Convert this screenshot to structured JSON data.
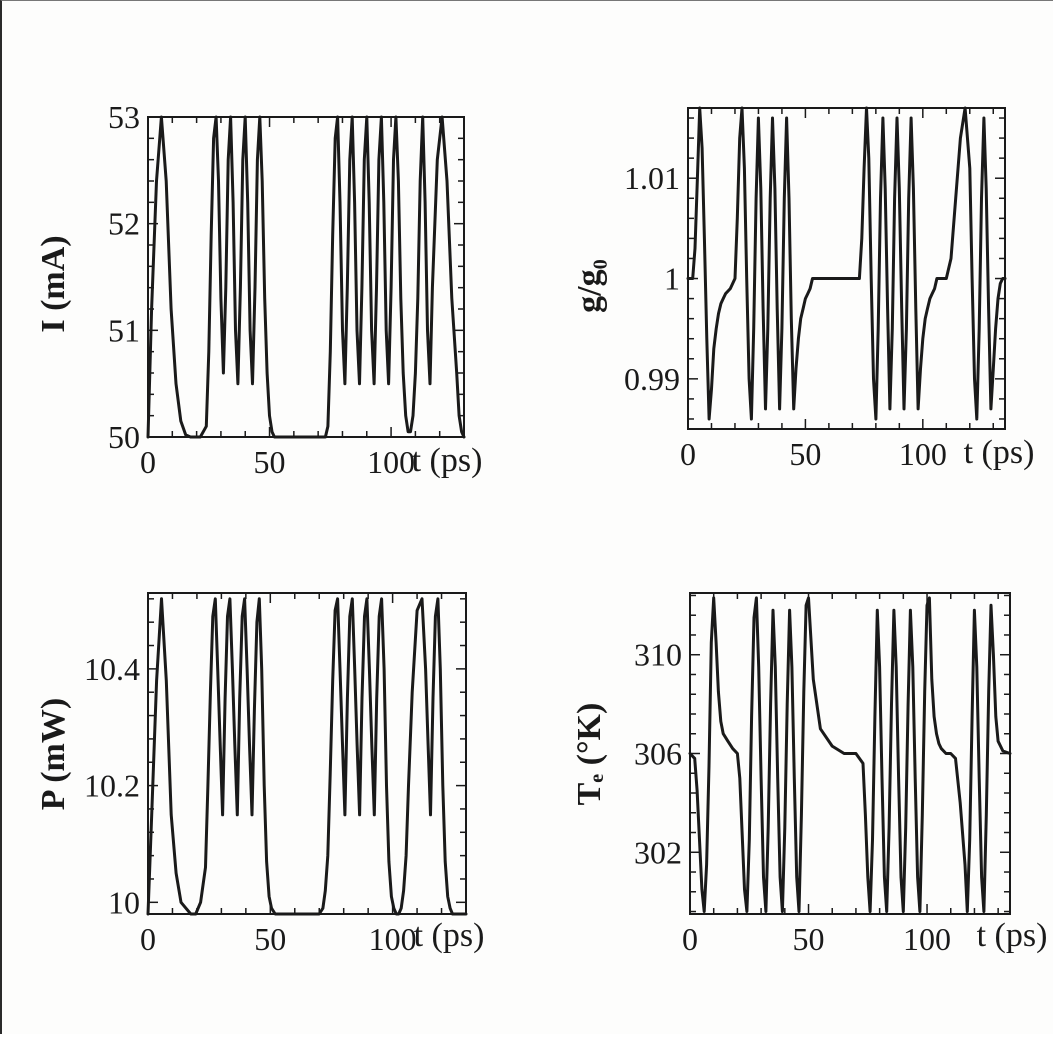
{
  "colors": {
    "ink": "#1a1a1a",
    "paper": "#fdfdfc"
  },
  "chart_data": [
    {
      "id": "current",
      "type": "line",
      "ylabel": "I  (mA)",
      "xlabel": "t  (ps)",
      "xlim": [
        0,
        130
      ],
      "ylim": [
        50,
        53
      ],
      "xticks": [
        0,
        50,
        100
      ],
      "xtick_labels": [
        "0",
        "50",
        "100"
      ],
      "yticks": [
        50,
        51,
        52,
        53
      ],
      "ytick_labels": [
        "50",
        "51",
        "52",
        "53"
      ],
      "grid": false,
      "series": [
        {
          "x": [
            0,
            1.5,
            3.5,
            5.5,
            7.5,
            9.5,
            11.5,
            13.5,
            15.5,
            17.5,
            19.5,
            21.5,
            24,
            25,
            26,
            27,
            28,
            29,
            30,
            31,
            32,
            33,
            34,
            35,
            36,
            37,
            38,
            39,
            40,
            41,
            42,
            43,
            44,
            45,
            46,
            47,
            48,
            49,
            50,
            51,
            52,
            53,
            54.5,
            56.5,
            58.5,
            60.5,
            63,
            73,
            74,
            75,
            76,
            77,
            78,
            79,
            80,
            81,
            82,
            83,
            84,
            85,
            86,
            87,
            88,
            89,
            90,
            91,
            92,
            93,
            94,
            95,
            96,
            97,
            98,
            99,
            100,
            101,
            102,
            103,
            104,
            105,
            106,
            107,
            108,
            109,
            110,
            111,
            112,
            113,
            114,
            115,
            116,
            117,
            119,
            121,
            123,
            125,
            127,
            128,
            129,
            130
          ],
          "y": [
            50,
            51.2,
            52.4,
            53,
            52.4,
            51.2,
            50.5,
            50.15,
            50.02,
            50,
            50,
            50,
            50.1,
            50.8,
            51.9,
            52.8,
            53,
            52.4,
            51.3,
            50.6,
            51.4,
            52.6,
            53,
            52.2,
            51.0,
            50.5,
            51.4,
            52.6,
            53,
            52.2,
            51.0,
            50.5,
            51.4,
            52.6,
            53,
            52.4,
            51.3,
            50.6,
            50.2,
            50.05,
            50,
            50,
            50,
            50,
            50,
            50,
            50,
            50,
            50.1,
            50.8,
            51.9,
            52.8,
            53,
            52.2,
            51.0,
            50.5,
            51.4,
            52.6,
            53,
            52.2,
            51.0,
            50.5,
            51.4,
            52.6,
            53,
            52.2,
            51.0,
            50.5,
            51.4,
            52.6,
            53,
            52.2,
            51.0,
            50.5,
            51.4,
            52.6,
            53,
            52.4,
            51.3,
            50.6,
            50.2,
            50.05,
            50.05,
            50.2,
            50.6,
            51.3,
            52.4,
            53,
            52.2,
            51.0,
            50.5,
            51.4,
            52.6,
            53,
            52.4,
            51.3,
            50.6,
            50.2,
            50.05,
            50
          ]
        }
      ]
    },
    {
      "id": "gain",
      "type": "line",
      "ylabel": "g/g₀",
      "xlabel": "t  (ps)",
      "xlim": [
        0,
        135
      ],
      "ylim": [
        0.985,
        1.017
      ],
      "xticks": [
        0,
        50,
        100
      ],
      "xtick_labels": [
        "0",
        "50",
        "100"
      ],
      "yticks": [
        0.99,
        1.0,
        1.01
      ],
      "ytick_labels": [
        "0.99",
        "1",
        "1.01"
      ],
      "grid": false,
      "series": [
        {
          "x": [
            0,
            2,
            3,
            4,
            5,
            6,
            7,
            8,
            9,
            10,
            11,
            12,
            13,
            14,
            15,
            16,
            18,
            20,
            21,
            22,
            23,
            24,
            25,
            26,
            27,
            28,
            29,
            30,
            31,
            32,
            33,
            34,
            35,
            36,
            37,
            38,
            39,
            40,
            41,
            42,
            43,
            44,
            45,
            46,
            47,
            48,
            49,
            50,
            51,
            52,
            53,
            55,
            58,
            62,
            66,
            70,
            73,
            74,
            75,
            76,
            77,
            78,
            79,
            80,
            81,
            82,
            83,
            84,
            85,
            86,
            87,
            88,
            89,
            90,
            91,
            92,
            93,
            94,
            95,
            96,
            97,
            98,
            99,
            100,
            101,
            102,
            103,
            104,
            105,
            106,
            107,
            108,
            110,
            112,
            114,
            116,
            118,
            120,
            121,
            122,
            123,
            124,
            125,
            126,
            127,
            128,
            129,
            130,
            131,
            132,
            133,
            134,
            135
          ],
          "y": [
            1.0,
            1.0,
            1.003,
            1.01,
            1.017,
            1.013,
            1.004,
            0.994,
            0.986,
            0.989,
            0.993,
            0.995,
            0.9965,
            0.9975,
            0.998,
            0.9985,
            0.999,
            1.0,
            1.006,
            1.014,
            1.017,
            1.011,
            1.0,
            0.99,
            0.986,
            0.995,
            1.008,
            1.016,
            1.009,
            0.997,
            0.987,
            0.995,
            1.008,
            1.016,
            1.009,
            0.997,
            0.987,
            0.995,
            1.008,
            1.016,
            1.008,
            0.996,
            0.987,
            0.991,
            0.994,
            0.996,
            0.997,
            0.998,
            0.9985,
            0.999,
            1.0,
            1.0,
            1.0,
            1.0,
            1.0,
            1.0,
            1.0,
            1.004,
            1.011,
            1.017,
            1.012,
            1.0,
            0.99,
            0.986,
            0.995,
            1.008,
            1.016,
            1.009,
            0.997,
            0.987,
            0.995,
            1.008,
            1.016,
            1.009,
            0.997,
            0.987,
            0.995,
            1.008,
            1.016,
            1.009,
            0.997,
            0.987,
            0.991,
            0.994,
            0.996,
            0.997,
            0.998,
            0.9985,
            0.999,
            1.0,
            1.0,
            1.0,
            1.0,
            1.002,
            1.008,
            1.014,
            1.017,
            1.011,
            1.0,
            0.99,
            0.986,
            0.995,
            1.008,
            1.016,
            1.009,
            0.997,
            0.987,
            0.991,
            0.995,
            0.998,
            0.9995,
            1.0,
            1.0
          ]
        }
      ]
    },
    {
      "id": "power",
      "type": "line",
      "ylabel": "P  (mW)",
      "xlabel": "t  (ps)",
      "xlim": [
        0,
        130
      ],
      "ylim": [
        9.98,
        10.53
      ],
      "xticks": [
        0,
        50,
        100
      ],
      "xtick_labels": [
        "0",
        "50",
        "100"
      ],
      "yticks": [
        10.0,
        10.2,
        10.4
      ],
      "ytick_labels": [
        "10",
        "10.2",
        "10.4"
      ],
      "grid": false,
      "series": [
        {
          "x": [
            0,
            1.5,
            3.5,
            5.5,
            7.5,
            9.5,
            11.5,
            13.5,
            15.5,
            17.5,
            19.5,
            21.5,
            23.5,
            24.5,
            25.5,
            26.5,
            27.5,
            28.5,
            29.5,
            30.5,
            31.5,
            32.5,
            33.5,
            34.5,
            35.5,
            36.5,
            37.5,
            38.5,
            39.5,
            40.5,
            41.5,
            42.5,
            43.5,
            44.5,
            45.5,
            46.5,
            47.5,
            48.5,
            49.5,
            50.5,
            52,
            55,
            62,
            68,
            70,
            71.5,
            72.5,
            73.5,
            74.5,
            75.5,
            76.5,
            77.5,
            78.5,
            79.5,
            80.5,
            81.5,
            82.5,
            83.5,
            84.5,
            85.5,
            86.5,
            87.5,
            88.5,
            89.5,
            90.5,
            91.5,
            92.5,
            93.5,
            94.5,
            95.5,
            96.5,
            97.5,
            98.5,
            99.5,
            100.5,
            101.5,
            102.5,
            103.5,
            104.5,
            105.5,
            106.5,
            108,
            110,
            112,
            113.5,
            114.5,
            115.5,
            116.5,
            117.5,
            118.5,
            119.5,
            120.5,
            121.5,
            122.5,
            123.5,
            124.5,
            125.5,
            126.5,
            128,
            130
          ],
          "y": [
            9.98,
            10.15,
            10.38,
            10.52,
            10.38,
            10.15,
            10.05,
            10.0,
            9.99,
            9.98,
            9.98,
            10.0,
            10.06,
            10.2,
            10.36,
            10.49,
            10.52,
            10.4,
            10.27,
            10.15,
            10.35,
            10.49,
            10.52,
            10.4,
            10.27,
            10.15,
            10.35,
            10.49,
            10.52,
            10.4,
            10.27,
            10.15,
            10.33,
            10.48,
            10.52,
            10.4,
            10.2,
            10.07,
            10.01,
            9.99,
            9.98,
            9.98,
            9.98,
            9.98,
            9.98,
            9.99,
            10.02,
            10.08,
            10.22,
            10.38,
            10.5,
            10.52,
            10.4,
            10.27,
            10.15,
            10.35,
            10.49,
            10.52,
            10.4,
            10.27,
            10.15,
            10.35,
            10.49,
            10.52,
            10.4,
            10.27,
            10.15,
            10.35,
            10.49,
            10.52,
            10.4,
            10.2,
            10.07,
            10.01,
            9.99,
            9.98,
            9.98,
            9.99,
            10.02,
            10.08,
            10.2,
            10.36,
            10.5,
            10.52,
            10.4,
            10.27,
            10.15,
            10.35,
            10.49,
            10.52,
            10.4,
            10.2,
            10.07,
            10.01,
            9.99,
            9.98,
            9.98,
            9.98,
            9.98,
            9.98
          ]
        }
      ]
    },
    {
      "id": "temperature",
      "type": "line",
      "ylabel": "Tₑ  (°K)",
      "xlabel": "t  (ps)",
      "xlim": [
        0,
        135
      ],
      "ylim": [
        299.5,
        312.5
      ],
      "xticks": [
        0,
        50,
        100
      ],
      "xtick_labels": [
        "0",
        "50",
        "100"
      ],
      "yticks": [
        302,
        306,
        310
      ],
      "ytick_labels": [
        "302",
        "306",
        "310"
      ],
      "grid": false,
      "series": [
        {
          "x": [
            0,
            2,
            3,
            4,
            5,
            6,
            7,
            8,
            9,
            10,
            11,
            12,
            13,
            14,
            16,
            18,
            20,
            21,
            22,
            23,
            24,
            25,
            26,
            27,
            28,
            29,
            30,
            31,
            32,
            33,
            34,
            35,
            36,
            37,
            38,
            39,
            40,
            41,
            42,
            43,
            44,
            45,
            46,
            47,
            48,
            49,
            50,
            52,
            55,
            60,
            65,
            70,
            73,
            74,
            75,
            76,
            77,
            78,
            79,
            80,
            81,
            82,
            83,
            84,
            85,
            86,
            87,
            88,
            89,
            90,
            91,
            92,
            93,
            94,
            95,
            96,
            97,
            98,
            99,
            100,
            101,
            102,
            103,
            104,
            105,
            106,
            108,
            110,
            112,
            114,
            116,
            117,
            118,
            119,
            120,
            121,
            122,
            123,
            124,
            125,
            126,
            127,
            128,
            129,
            130,
            132,
            135
          ],
          "y": [
            306,
            305.8,
            304.5,
            302.5,
            300.5,
            299.6,
            301.5,
            305.5,
            310.5,
            312.3,
            310.5,
            308.5,
            307.3,
            306.8,
            306.5,
            306.2,
            306.0,
            305.0,
            302.8,
            300.5,
            299.6,
            302.5,
            307.5,
            311.5,
            312.3,
            309.5,
            305,
            301,
            299.6,
            303,
            308,
            311.8,
            309.5,
            305,
            301,
            299.6,
            303,
            308,
            311.8,
            309.5,
            305,
            301,
            299.6,
            303.5,
            308.5,
            312.0,
            312.3,
            309,
            307,
            306.3,
            306.0,
            306.0,
            305.6,
            303.5,
            301.0,
            299.6,
            302.5,
            307.5,
            311.8,
            309.5,
            305,
            301,
            299.6,
            303,
            308,
            311.8,
            309.5,
            305,
            301,
            299.6,
            303,
            308,
            311.8,
            309.5,
            305,
            301,
            299.6,
            303.5,
            308.5,
            312.0,
            312.3,
            309,
            307.5,
            306.8,
            306.4,
            306.2,
            306.0,
            306.0,
            305.8,
            304,
            301.5,
            299.6,
            302.5,
            307.5,
            311.8,
            309.5,
            305,
            301,
            299.6,
            303.5,
            308.5,
            312.0,
            310,
            307.5,
            306.5,
            306.1,
            306.0
          ]
        }
      ]
    }
  ]
}
